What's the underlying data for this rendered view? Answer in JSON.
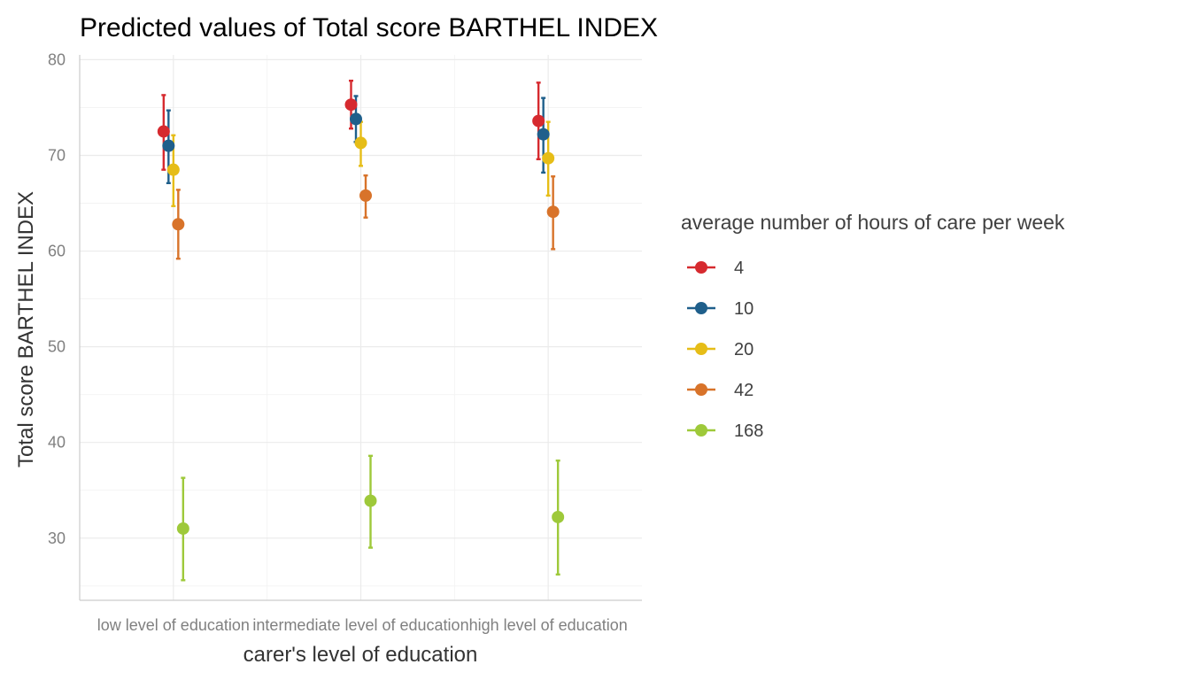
{
  "chart_data": {
    "type": "scatter",
    "title": "Predicted values of Total score BARTHEL INDEX",
    "xlabel": "carer's level of education",
    "ylabel": "Total score BARTHEL INDEX",
    "categories": [
      "low level of education",
      "intermediate level of education",
      "high level of education"
    ],
    "ylim": [
      23.5,
      80.5
    ],
    "yticks": [
      30,
      40,
      50,
      60,
      70,
      80
    ],
    "grid": true,
    "legend": {
      "title": "average number of hours of care per week",
      "position": "right"
    },
    "series": [
      {
        "name": "4",
        "color": "#d62a2f",
        "values": [
          72.5,
          75.3,
          73.6
        ],
        "lower": [
          68.5,
          72.8,
          69.6
        ],
        "upper": [
          76.3,
          77.8,
          77.6
        ]
      },
      {
        "name": "10",
        "color": "#1f5f8b",
        "values": [
          71.0,
          73.8,
          72.2
        ],
        "lower": [
          67.1,
          71.4,
          68.2
        ],
        "upper": [
          74.7,
          76.2,
          76.0
        ]
      },
      {
        "name": "20",
        "color": "#e6bd17",
        "values": [
          68.5,
          71.3,
          69.7
        ],
        "lower": [
          64.7,
          68.9,
          65.8
        ],
        "upper": [
          72.1,
          73.5,
          73.5
        ]
      },
      {
        "name": "42",
        "color": "#d8732a",
        "values": [
          62.8,
          65.8,
          64.1
        ],
        "lower": [
          59.2,
          63.5,
          60.2
        ],
        "upper": [
          66.4,
          67.9,
          67.8
        ]
      },
      {
        "name": "168",
        "color": "#9ec93a",
        "values": [
          31.0,
          33.9,
          32.2
        ],
        "lower": [
          25.6,
          29.0,
          26.2
        ],
        "upper": [
          36.3,
          38.6,
          38.1
        ]
      }
    ]
  }
}
